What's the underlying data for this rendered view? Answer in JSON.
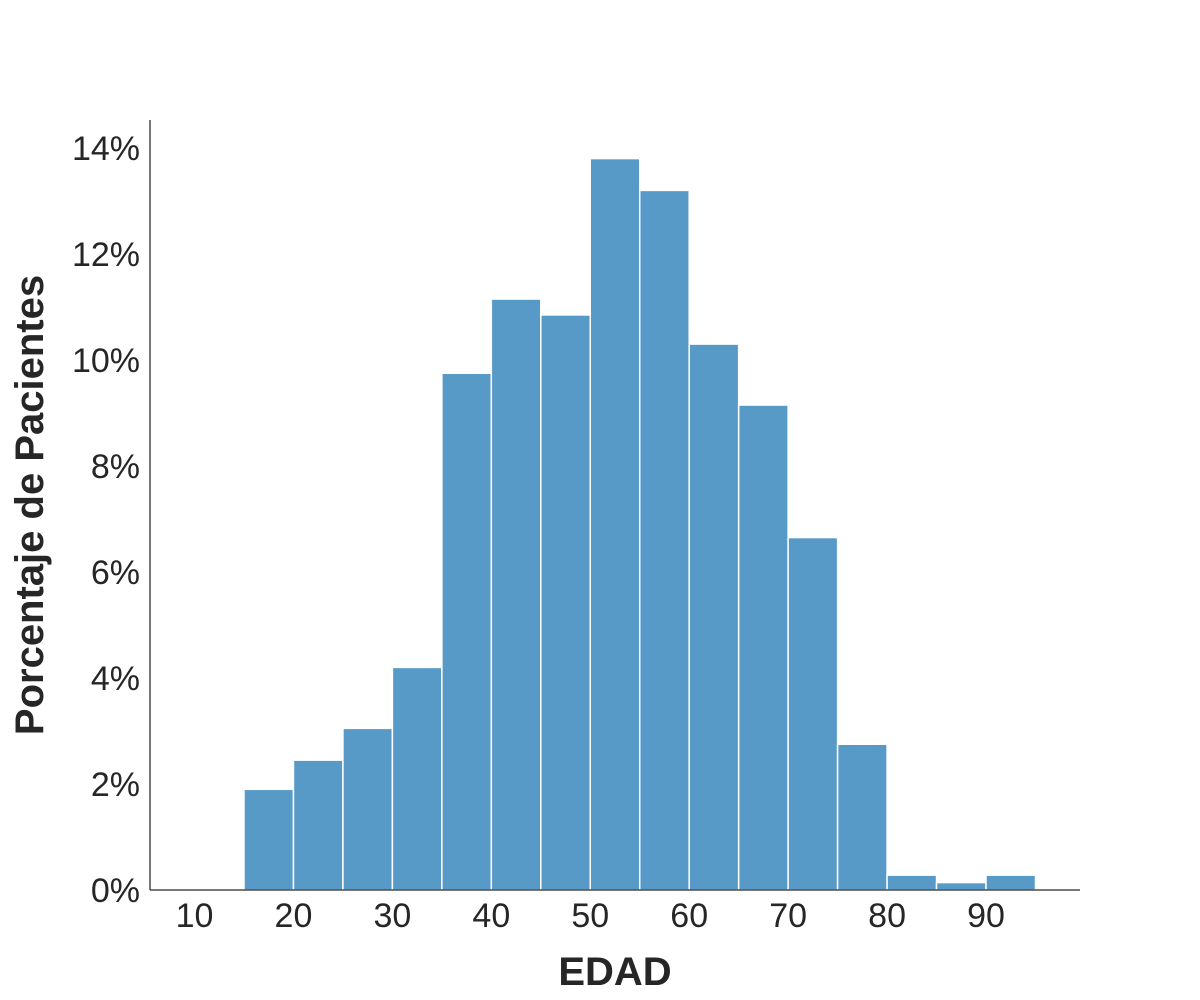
{
  "chart_data": {
    "type": "bar",
    "subtype": "histogram",
    "title": "",
    "xlabel": "EDAD",
    "ylabel": "Porcentaje de Pacientes",
    "bins": [
      {
        "x0": 15,
        "x1": 20,
        "value": 1.9
      },
      {
        "x0": 20,
        "x1": 25,
        "value": 2.45
      },
      {
        "x0": 25,
        "x1": 30,
        "value": 3.05
      },
      {
        "x0": 30,
        "x1": 35,
        "value": 4.2
      },
      {
        "x0": 35,
        "x1": 40,
        "value": 9.75
      },
      {
        "x0": 40,
        "x1": 45,
        "value": 11.15
      },
      {
        "x0": 45,
        "x1": 50,
        "value": 10.85
      },
      {
        "x0": 50,
        "x1": 55,
        "value": 13.8
      },
      {
        "x0": 55,
        "x1": 60,
        "value": 13.2
      },
      {
        "x0": 60,
        "x1": 65,
        "value": 10.3
      },
      {
        "x0": 65,
        "x1": 70,
        "value": 9.15
      },
      {
        "x0": 70,
        "x1": 75,
        "value": 6.65
      },
      {
        "x0": 75,
        "x1": 80,
        "value": 2.75
      },
      {
        "x0": 80,
        "x1": 85,
        "value": 0.28
      },
      {
        "x0": 85,
        "x1": 90,
        "value": 0.14
      },
      {
        "x0": 90,
        "x1": 95,
        "value": 0.28
      }
    ],
    "xlim": [
      5.5,
      99.5
    ],
    "ylim": [
      0,
      14.5
    ],
    "x_ticks": [
      10,
      20,
      30,
      40,
      50,
      60,
      70,
      80,
      90
    ],
    "y_ticks": [
      {
        "value": 0,
        "label": "0%"
      },
      {
        "value": 2,
        "label": "2%"
      },
      {
        "value": 4,
        "label": "4%"
      },
      {
        "value": 6,
        "label": "6%"
      },
      {
        "value": 8,
        "label": "8%"
      },
      {
        "value": 10,
        "label": "10%"
      },
      {
        "value": 12,
        "label": "12%"
      },
      {
        "value": 14,
        "label": "14%"
      }
    ],
    "grid": false,
    "bar_color": "#5799c7"
  }
}
